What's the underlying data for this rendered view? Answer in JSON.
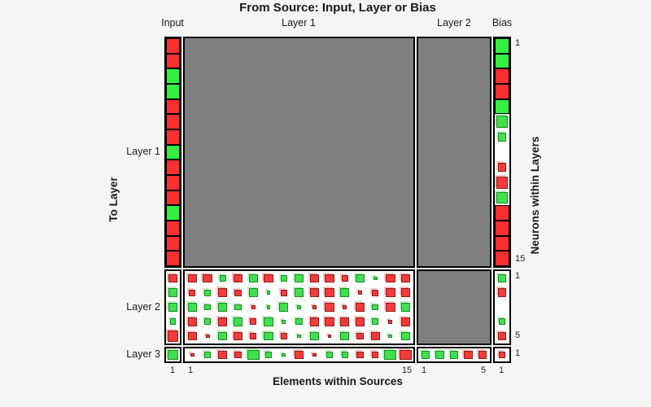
{
  "figure": {
    "background": "#f5f5f4",
    "no_connection_color": "#7f7f7f",
    "positive_color": "#34f043",
    "negative_color": "#fb3030"
  },
  "chart_data": {
    "type": "heatmap",
    "title": "From Source: Input, Layer or Bias",
    "xlabel": "Elements within Sources",
    "ylabel_left": "To Layer",
    "ylabel_right": "Neurons within Layers",
    "encoding": "cell = 'color:size'; r=red(negative weight), g=green(positive weight); size f=full,l=large,m=medium,s=small,t=tiny; empty string = zero weight; gray block = no connection",
    "sources": [
      {
        "label": "Input",
        "elements": 1
      },
      {
        "label": "Layer 1",
        "elements": 15
      },
      {
        "label": "Layer 2",
        "elements": 5
      },
      {
        "label": "Bias",
        "elements": 1
      }
    ],
    "to_layers": [
      {
        "label": "Layer 1",
        "neurons": 15
      },
      {
        "label": "Layer 2",
        "neurons": 5
      },
      {
        "label": "Layer 3",
        "neurons": 1
      }
    ],
    "ticks": {
      "bottom": [
        "1",
        "1",
        "15",
        "1",
        "5",
        "1"
      ],
      "right": [
        "1",
        "15",
        "1",
        "5",
        "1"
      ]
    },
    "blocks": {
      "layer1": {
        "input": [
          "r:f",
          "r:f",
          "g:f",
          "g:f",
          "r:f",
          "r:f",
          "r:f",
          "g:f",
          "r:f",
          "r:f",
          "r:f",
          "g:f",
          "r:f",
          "r:f",
          "r:f"
        ],
        "layer1": "gray",
        "layer2": "gray",
        "bias": [
          "g:f",
          "g:f",
          "r:f",
          "r:f",
          "g:f",
          "g:l",
          "g:m",
          "",
          "r:m",
          "r:l",
          "g:l",
          "r:f",
          "r:f",
          "r:f",
          "r:f"
        ]
      },
      "layer2": {
        "input": [
          "r:m",
          "g:m",
          "g:m",
          "g:s",
          "r:l"
        ],
        "layer1": [
          [
            "r:m",
            "r:m",
            "g:s",
            "r:m",
            "g:m",
            "r:m",
            "g:s",
            "g:m",
            "r:m",
            "r:m",
            "r:s",
            "g:m",
            "g:t",
            "r:m",
            "r:m"
          ],
          [
            "r:s",
            "g:s",
            "r:m",
            "r:s",
            "g:m",
            "g:t",
            "r:s",
            "g:m",
            "r:m",
            "r:m",
            "g:m",
            "r:t",
            "r:s",
            "r:m",
            "r:m"
          ],
          [
            "g:m",
            "g:s",
            "g:m",
            "g:s",
            "r:t",
            "g:t",
            "g:m",
            "g:t",
            "r:t",
            "r:m",
            "r:t",
            "r:m",
            "g:s",
            "r:m",
            "g:m"
          ],
          [
            "r:m",
            "g:s",
            "r:m",
            "g:m",
            "r:s",
            "g:m",
            "g:t",
            "g:s",
            "r:m",
            "r:m",
            "r:m",
            "r:m",
            "g:s",
            "r:t",
            "r:m"
          ],
          [
            "r:m",
            "r:t",
            "g:m",
            "r:m",
            "r:s",
            "g:m",
            "r:s",
            "g:t",
            "g:m",
            "r:t",
            "g:m",
            "r:s",
            "r:m",
            "g:t",
            "g:m"
          ]
        ],
        "layer2": "gray",
        "bias": [
          "g:m",
          "r:m",
          "",
          "g:s",
          "r:m"
        ]
      },
      "layer3": {
        "input": [
          "g:l"
        ],
        "layer1": [
          "r:t",
          "g:s",
          "r:m",
          "r:s",
          "g:l",
          "g:s",
          "g:t",
          "r:m",
          "r:t",
          "g:s",
          "g:s",
          "r:s",
          "r:s",
          "g:l",
          "r:l"
        ],
        "layer2": [
          "g:m",
          "g:m",
          "g:m",
          "r:m",
          "r:m"
        ],
        "bias": [
          "r:s"
        ]
      }
    }
  }
}
